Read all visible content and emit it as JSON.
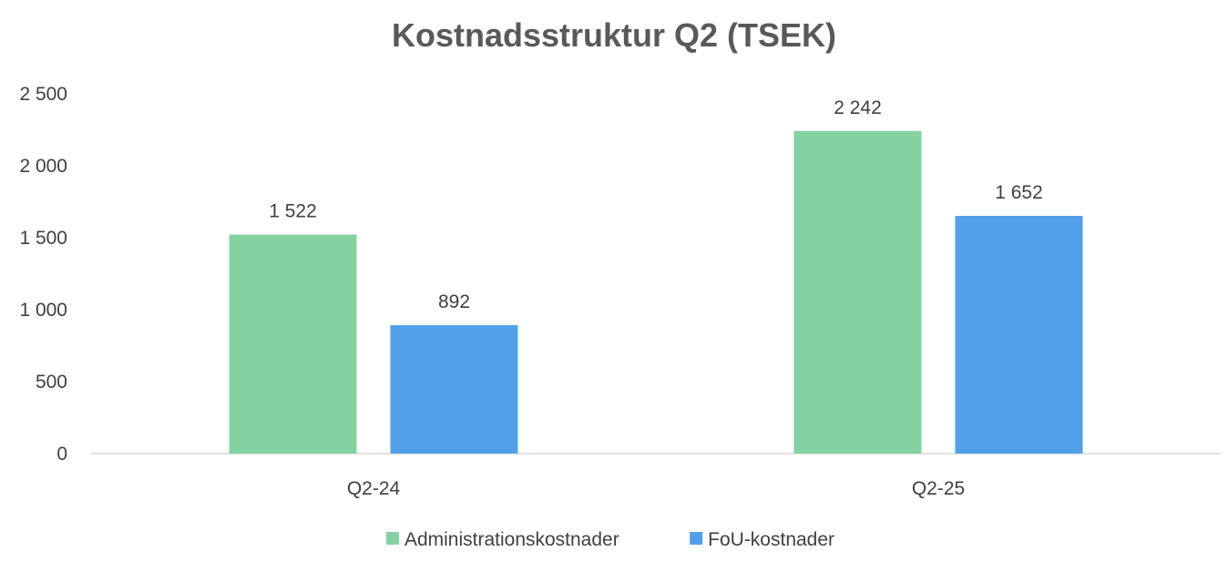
{
  "chart_data": {
    "type": "bar",
    "title": "Kostnadsstruktur Q2 (TSEK)",
    "categories": [
      "Q2-24",
      "Q2-25"
    ],
    "series": [
      {
        "name": "Administrationskostnader",
        "values": [
          1522,
          2242
        ],
        "labels": [
          "1 522",
          "2 242"
        ],
        "color": "#84D1A2"
      },
      {
        "name": "FoU-kostnader",
        "values": [
          892,
          1652
        ],
        "labels": [
          "892",
          "1 652"
        ],
        "color": "#52A0EA"
      }
    ],
    "ylim": [
      0,
      2500
    ],
    "y_ticks": [
      0,
      500,
      1000,
      1500,
      2000,
      2500
    ],
    "y_tick_labels": [
      "0",
      "500",
      "1 000",
      "1 500",
      "2 000",
      "2 500"
    ],
    "xlabel": "",
    "ylabel": "",
    "grid": false,
    "legend_position": "bottom"
  }
}
